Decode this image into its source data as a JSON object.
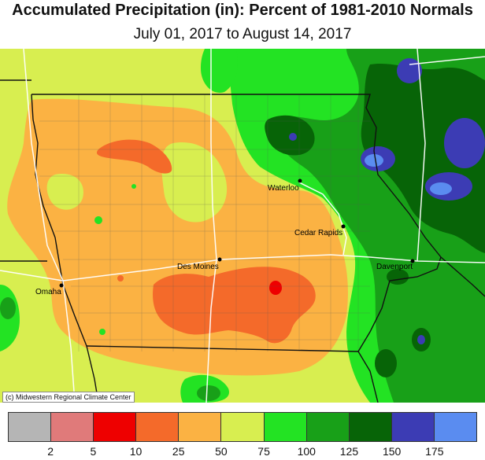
{
  "title": "Accumulated Precipitation (in): Percent of 1981-2010 Normals",
  "subtitle": "July 01, 2017 to August 14, 2017",
  "credit": "(c) Midwestern Regional Climate Center",
  "cities": {
    "waterloo": "Waterloo",
    "cedar_rapids": "Cedar Rapids",
    "des_moines": "Des Moines",
    "omaha": "Omaha",
    "davenport": "Davenport"
  },
  "legend": {
    "colors": [
      "#b5b5b5",
      "#e07a7a",
      "#ee0000",
      "#f46a2a",
      "#fbb243",
      "#d8ee50",
      "#23e323",
      "#18a018",
      "#076407",
      "#3c3cb4",
      "#5a8cf0"
    ],
    "ticks": [
      "2",
      "5",
      "10",
      "25",
      "50",
      "75",
      "100",
      "125",
      "150",
      "175"
    ]
  }
}
